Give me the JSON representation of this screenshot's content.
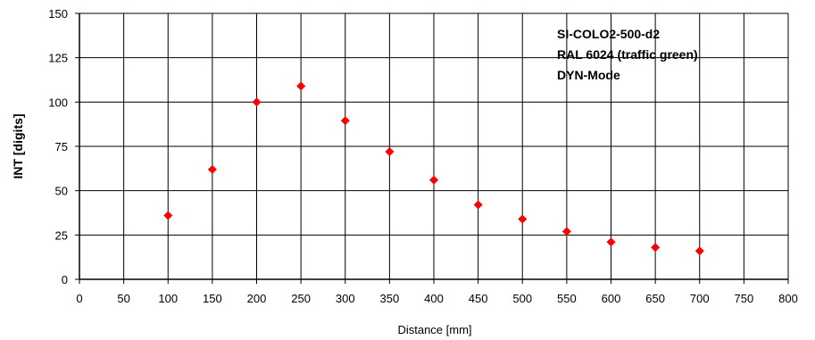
{
  "chart_data": {
    "type": "scatter",
    "title": "",
    "xlabel": "Distance [mm]",
    "ylabel": "INT [digits]",
    "xlim": [
      0,
      800
    ],
    "ylim": [
      0,
      150
    ],
    "x_ticks": [
      0,
      50,
      100,
      150,
      200,
      250,
      300,
      350,
      400,
      450,
      500,
      550,
      600,
      650,
      700,
      750,
      800
    ],
    "y_ticks": [
      0,
      25,
      50,
      75,
      100,
      125,
      150
    ],
    "grid": true,
    "annotation_lines": [
      "SI-COLO2-500-d2",
      "RAL 6024 (traffic green)",
      "DYN-Mode"
    ],
    "series": [
      {
        "marker": "diamond",
        "color": "#ff0000",
        "x": [
          100,
          150,
          200,
          250,
          300,
          350,
          400,
          450,
          500,
          550,
          600,
          650,
          700
        ],
        "y": [
          36,
          62,
          100,
          109,
          89.5,
          72,
          56,
          42,
          34,
          27,
          21,
          18,
          16
        ]
      }
    ]
  }
}
